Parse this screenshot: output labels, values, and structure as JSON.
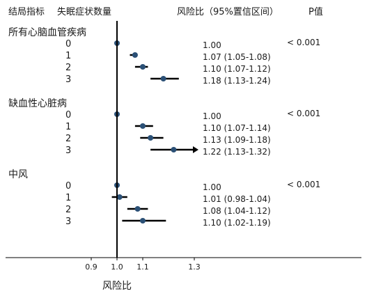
{
  "headers": {
    "outcome": "结局指标",
    "symptoms": "失眠症状数量",
    "estimate": "风险比（95%置信区间）",
    "pvalue": "P值"
  },
  "chart_data": {
    "type": "forest",
    "xlabel": "风险比",
    "reference": 1.0,
    "xlim": [
      0.85,
      1.35
    ],
    "ticks": [
      {
        "value": 0.9,
        "label": "0.9"
      },
      {
        "value": 1.0,
        "label": "1.0"
      },
      {
        "value": 1.1,
        "label": "1.1"
      },
      {
        "value": 1.3,
        "label": "1.3"
      }
    ],
    "marker_color": "#2b5076",
    "groups": [
      {
        "name": "所有心脑血管疾病",
        "p": "< 0.001",
        "rows": [
          {
            "level": "0",
            "hr": 1.0,
            "lo": 1.0,
            "hi": 1.0,
            "text": "1.00"
          },
          {
            "level": "1",
            "hr": 1.07,
            "lo": 1.05,
            "hi": 1.08,
            "text": "1.07 (1.05-1.08)"
          },
          {
            "level": "2",
            "hr": 1.1,
            "lo": 1.07,
            "hi": 1.12,
            "text": "1.10 (1.07-1.12)"
          },
          {
            "level": "3",
            "hr": 1.18,
            "lo": 1.13,
            "hi": 1.24,
            "text": "1.18 (1.13-1.24)"
          }
        ]
      },
      {
        "name": "缺血性心脏病",
        "p": "< 0.001",
        "rows": [
          {
            "level": "0",
            "hr": 1.0,
            "lo": 1.0,
            "hi": 1.0,
            "text": "1.00"
          },
          {
            "level": "1",
            "hr": 1.1,
            "lo": 1.07,
            "hi": 1.14,
            "text": "1.10 (1.07-1.14)"
          },
          {
            "level": "2",
            "hr": 1.13,
            "lo": 1.09,
            "hi": 1.18,
            "text": "1.13 (1.09-1.18)"
          },
          {
            "level": "3",
            "hr": 1.22,
            "lo": 1.13,
            "hi": 1.32,
            "text": "1.22 (1.13-1.32)",
            "arrow": true
          }
        ]
      },
      {
        "name": "中风",
        "p": "< 0.001",
        "rows": [
          {
            "level": "0",
            "hr": 1.0,
            "lo": 1.0,
            "hi": 1.0,
            "text": "1.00"
          },
          {
            "level": "1",
            "hr": 1.01,
            "lo": 0.98,
            "hi": 1.04,
            "text": "1.01 (0.98-1.04)"
          },
          {
            "level": "2",
            "hr": 1.08,
            "lo": 1.04,
            "hi": 1.12,
            "text": "1.08 (1.04-1.12)"
          },
          {
            "level": "3",
            "hr": 1.1,
            "lo": 1.02,
            "hi": 1.19,
            "text": "1.10 (1.02-1.19)"
          }
        ]
      }
    ]
  }
}
